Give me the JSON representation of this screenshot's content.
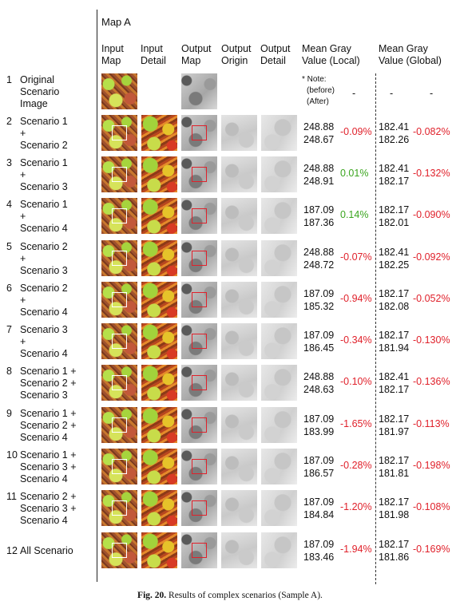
{
  "map_title": "Map A",
  "headers": {
    "input_map": [
      "Input",
      "Map"
    ],
    "input_detail": [
      "Input",
      "Detail"
    ],
    "output_map": [
      "Output",
      "Map"
    ],
    "output_origin": [
      "Output",
      "Origin"
    ],
    "output_detail": [
      "Output",
      "Detail"
    ],
    "mean_local": [
      "Mean Gray",
      "Value (Local)"
    ],
    "mean_global": [
      "Mean Gray",
      "Value (Global)"
    ]
  },
  "note": [
    "* Note:",
    "(before)",
    "(After)"
  ],
  "dash": "-",
  "rows": [
    {
      "num": "1",
      "label": [
        "Original",
        "Scenario",
        "Image"
      ]
    },
    {
      "num": "2",
      "label": [
        "Scenario 1",
        "+",
        "Scenario 2"
      ],
      "local_before": "248.88",
      "local_after": "248.67",
      "local_pct": "-0.09%",
      "global_before": "182.41",
      "global_after": "182.26",
      "global_pct": "-0.082%"
    },
    {
      "num": "3",
      "label": [
        "Scenario 1",
        "+",
        "Scenario 3"
      ],
      "local_before": "248.88",
      "local_after": "248.91",
      "local_pct": "0.01%",
      "global_before": "182.41",
      "global_after": "182.17",
      "global_pct": "-0.132%"
    },
    {
      "num": "4",
      "label": [
        "Scenario 1",
        "+",
        "Scenario 4"
      ],
      "local_before": "187.09",
      "local_after": "187.36",
      "local_pct": "0.14%",
      "global_before": "182.17",
      "global_after": "182.01",
      "global_pct": "-0.090%"
    },
    {
      "num": "5",
      "label": [
        "Scenario 2",
        "+",
        "Scenario 3"
      ],
      "local_before": "248.88",
      "local_after": "248.72",
      "local_pct": "-0.07%",
      "global_before": "182.41",
      "global_after": "182.25",
      "global_pct": "-0.092%"
    },
    {
      "num": "6",
      "label": [
        "Scenario 2",
        "+",
        "Scenario 4"
      ],
      "local_before": "187.09",
      "local_after": "185.32",
      "local_pct": "-0.94%",
      "global_before": "182.17",
      "global_after": "182.08",
      "global_pct": "-0.052%"
    },
    {
      "num": "7",
      "label": [
        "Scenario 3",
        "+",
        "Scenario 4"
      ],
      "local_before": "187.09",
      "local_after": "186.45",
      "local_pct": "-0.34%",
      "global_before": "182.17",
      "global_after": "181.94",
      "global_pct": "-0.130%"
    },
    {
      "num": "8",
      "label": [
        "Scenario 1 +",
        "Scenario 2 +",
        "Scenario 3"
      ],
      "local_before": "248.88",
      "local_after": "248.63",
      "local_pct": "-0.10%",
      "global_before": "182.41",
      "global_after": "182.17",
      "global_pct": "-0.136%"
    },
    {
      "num": "9",
      "label": [
        "Scenario 1 +",
        "Scenario 2 +",
        "Scenario 4"
      ],
      "local_before": "187.09",
      "local_after": "183.99",
      "local_pct": "-1.65%",
      "global_before": "182.17",
      "global_after": "181.97",
      "global_pct": "-0.113%"
    },
    {
      "num": "10",
      "label": [
        "Scenario 1 +",
        "Scenario 3 +",
        "Scenario 4"
      ],
      "local_before": "187.09",
      "local_after": "186.57",
      "local_pct": "-0.28%",
      "global_before": "182.17",
      "global_after": "181.81",
      "global_pct": "-0.198%"
    },
    {
      "num": "11",
      "label": [
        "Scenario 2 +",
        "Scenario 3 +",
        "Scenario 4"
      ],
      "local_before": "187.09",
      "local_after": "184.84",
      "local_pct": "-1.20%",
      "global_before": "182.17",
      "global_after": "181.98",
      "global_pct": "-0.108%"
    },
    {
      "num": "12",
      "label": [
        "All Scenario"
      ],
      "local_before": "187.09",
      "local_after": "183.46",
      "local_pct": "-1.94%",
      "global_before": "182.17",
      "global_after": "181.86",
      "global_pct": "-0.169%"
    }
  ],
  "caption": {
    "label": "Fig. 20.",
    "text": "Results of complex scenarios (Sample A)."
  },
  "colors": {
    "negative": "#e0212b",
    "positive": "#3aa51e"
  }
}
